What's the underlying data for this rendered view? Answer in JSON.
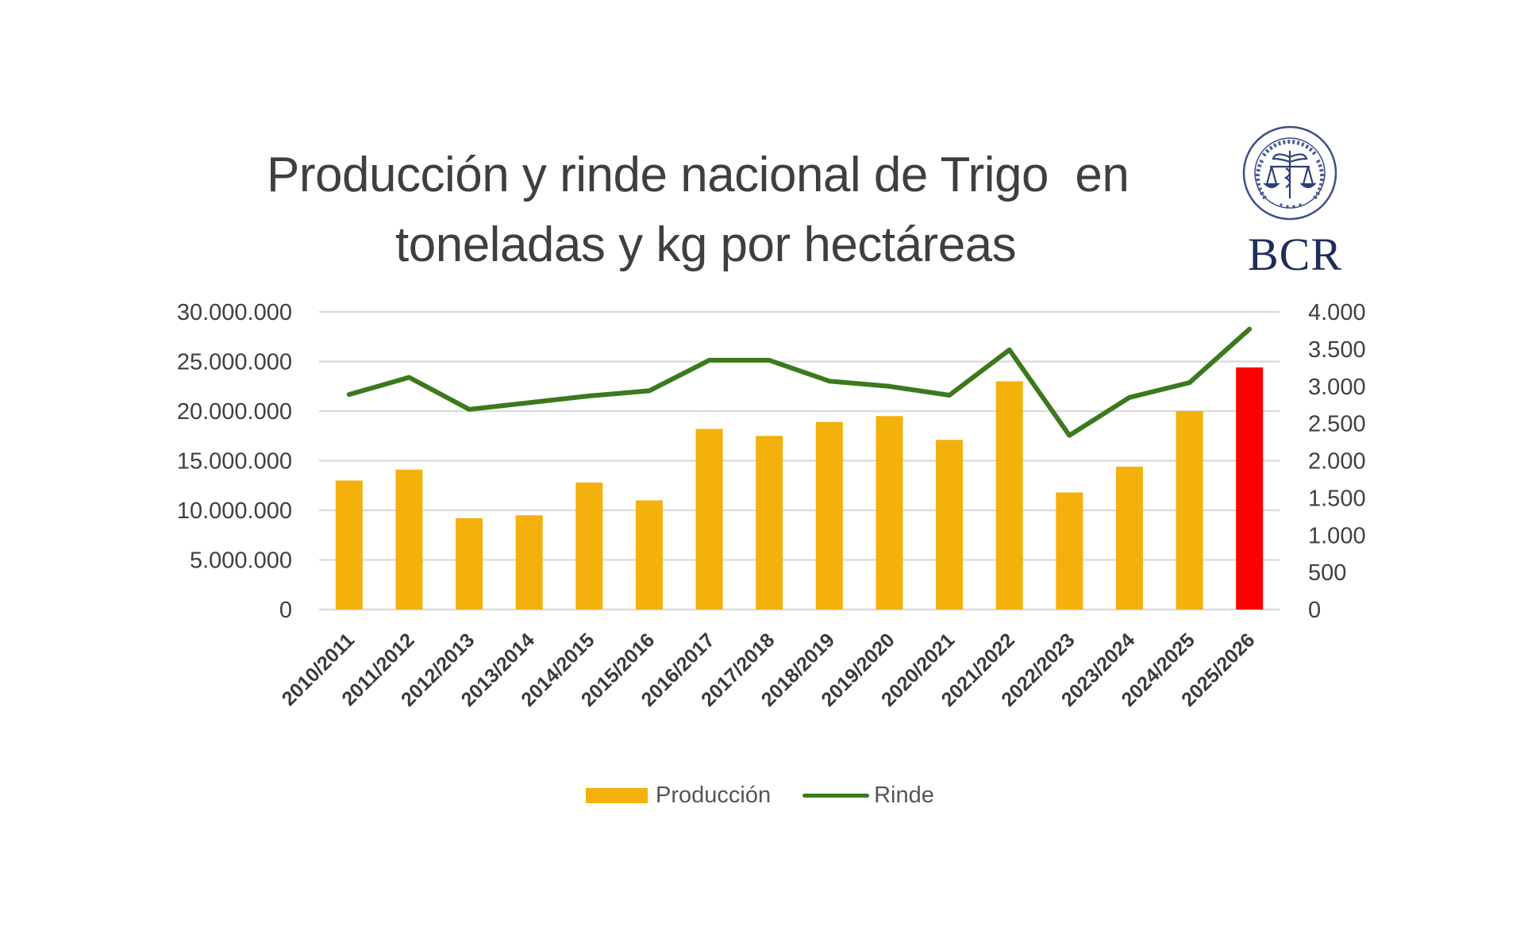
{
  "title": {
    "line1": "Producción y rinde nacional de Trigo  en",
    "line2": "toneladas y kg por hectáreas"
  },
  "logo": {
    "text": "BCR",
    "seal_icon": "bolsa-de-comercio-seal-icon"
  },
  "colors": {
    "bar": "#f4b10b",
    "bar_highlight": "#ff0000",
    "line": "#3b7a1c",
    "grid": "#d9d9d9",
    "text": "#404040"
  },
  "legend": {
    "items": [
      {
        "label": "Producción",
        "type": "bar"
      },
      {
        "label": "Rinde",
        "type": "line"
      }
    ]
  },
  "chart_data": {
    "type": "bar",
    "title": "Producción y rinde nacional de Trigo en toneladas y kg por hectáreas",
    "xlabel": "",
    "ylabel": "",
    "categories": [
      "2010/2011",
      "2011/2012",
      "2012/2013",
      "2013/2014",
      "2014/2015",
      "2015/2016",
      "2016/2017",
      "2017/2018",
      "2018/2019",
      "2019/2020",
      "2020/2021",
      "2021/2022",
      "2022/2023",
      "2023/2024",
      "2024/2025",
      "2025/2026"
    ],
    "series": [
      {
        "name": "Producción",
        "type": "bar",
        "axis": "left",
        "values": [
          13000000,
          14100000,
          9200000,
          9500000,
          12800000,
          11000000,
          18200000,
          17500000,
          18900000,
          19500000,
          17100000,
          23000000,
          11800000,
          14400000,
          20000000,
          24400000
        ],
        "highlight_index": 15
      },
      {
        "name": "Rinde",
        "type": "line",
        "axis": "right",
        "values": [
          2890,
          3120,
          2690,
          2780,
          2870,
          2940,
          3350,
          3350,
          3070,
          3000,
          2880,
          3490,
          2340,
          2850,
          3050,
          3770
        ]
      }
    ],
    "ylim": [
      0,
      30000000
    ],
    "y2lim": [
      0,
      4000
    ],
    "yticks": [
      "0",
      "5.000.000",
      "10.000.000",
      "15.000.000",
      "20.000.000",
      "25.000.000",
      "30.000.000"
    ],
    "y2ticks": [
      "0",
      "500",
      "1.000",
      "1.500",
      "2.000",
      "2.500",
      "3.000",
      "3.500",
      "4.000"
    ],
    "grid": true,
    "legend_position": "bottom"
  }
}
